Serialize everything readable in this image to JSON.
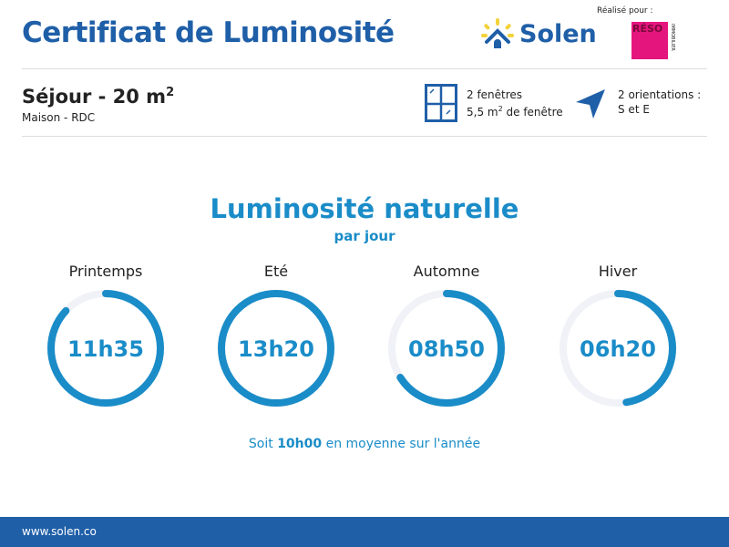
{
  "header": {
    "title": "Certificat de Luminosité",
    "brand": "Solen",
    "made_for": "Réalisé pour :",
    "partner_logo": "RÉSO IMMOBILIER"
  },
  "room": {
    "title": "Séjour - 20 m",
    "sup": "2",
    "subtitle": "Maison - RDC"
  },
  "windows": {
    "icon": "window-icon",
    "line1": "2 fenêtres",
    "line2a": "5,5 m",
    "sup": "2",
    "line2b": " de fenêtre"
  },
  "orientation": {
    "icon": "navigation-arrow-icon",
    "line1": "2 orientations :",
    "line2": "S et E"
  },
  "section": {
    "title": "Luminosité naturelle",
    "subtitle": "par jour"
  },
  "seasons": [
    {
      "name": "Printemps",
      "value": "11h35",
      "fill": 0.87
    },
    {
      "name": "Eté",
      "value": "13h20",
      "fill": 1.0
    },
    {
      "name": "Automne",
      "value": "08h50",
      "fill": 0.66
    },
    {
      "name": "Hiver",
      "value": "06h20",
      "fill": 0.475
    }
  ],
  "average": {
    "prefix": "Soit ",
    "value": "10h00",
    "suffix": " en moyenne sur l'année"
  },
  "footer": {
    "url": "www.solen.co"
  },
  "colors": {
    "accent": "#1a8cc8",
    "brand": "#1f5fa8",
    "track": "#f0f2f7",
    "partner": "#e5157e"
  }
}
